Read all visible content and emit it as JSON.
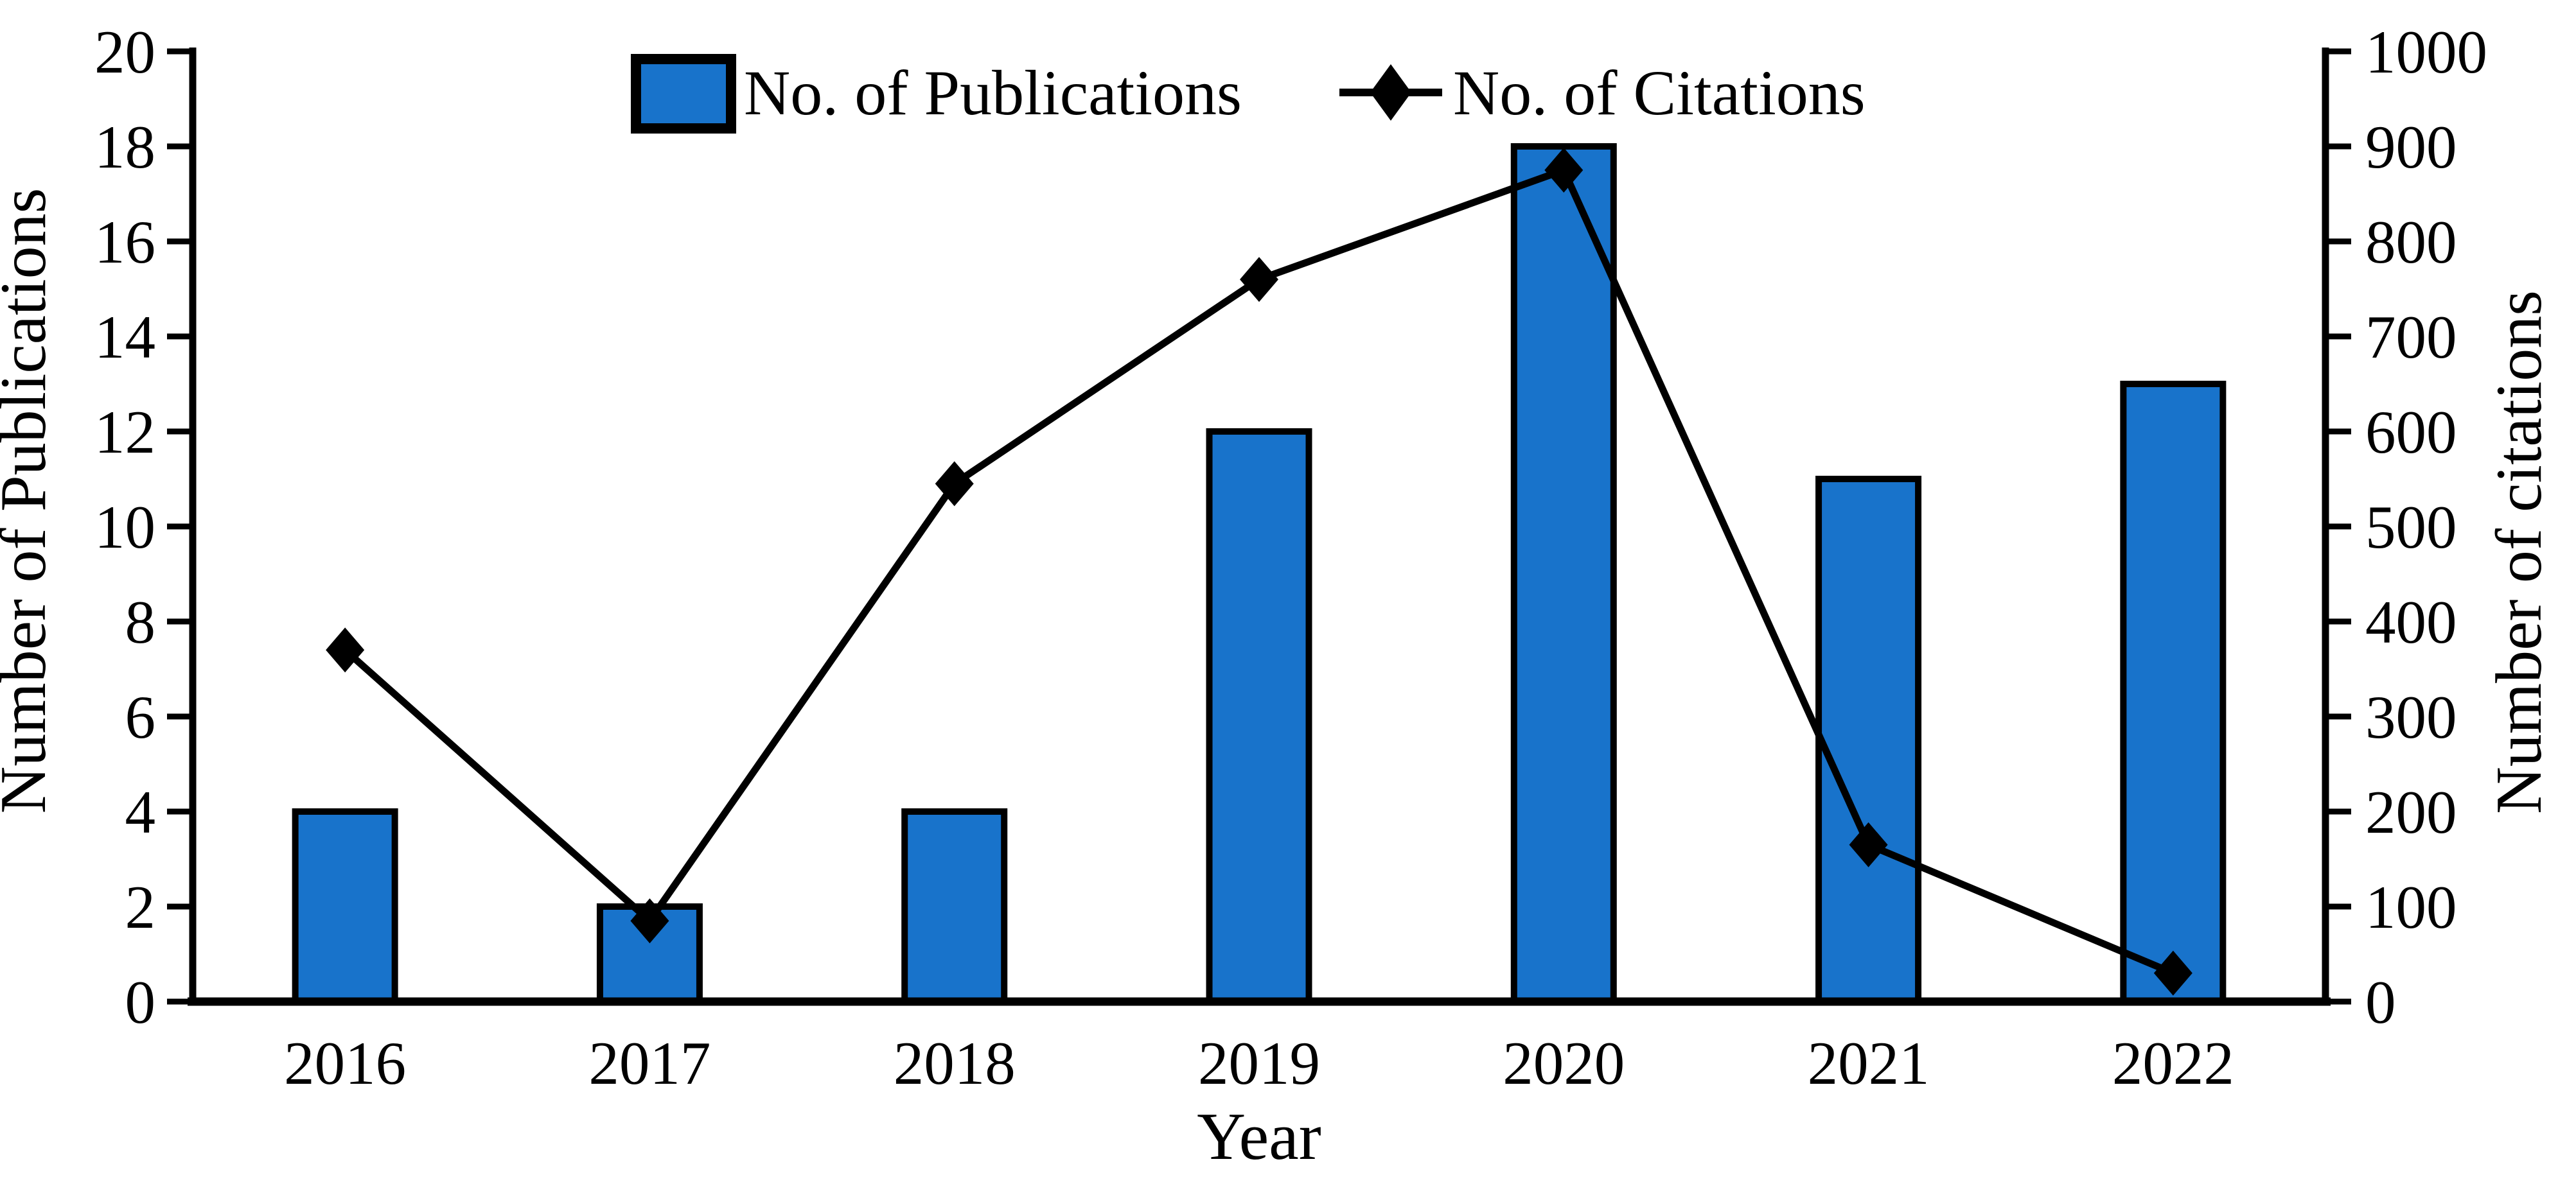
{
  "figure": {
    "background": "#ffffff",
    "text_color": "#000000"
  },
  "chart_data": {
    "type": "combo",
    "categories": [
      "2016",
      "2017",
      "2018",
      "2019",
      "2020",
      "2021",
      "2022"
    ],
    "series": [
      {
        "name": "No. of Publications",
        "type": "bar",
        "axis": "left",
        "values": [
          4,
          2,
          4,
          12,
          18,
          11,
          13
        ],
        "color": "#1873CB",
        "border_color": "#000000"
      },
      {
        "name": "No. of Citations",
        "type": "line",
        "axis": "right",
        "values": [
          370,
          85,
          545,
          760,
          875,
          165,
          30
        ],
        "color": "#000000",
        "marker": "diamond"
      }
    ],
    "left_axis": {
      "label": "Number of Publications",
      "min": 0,
      "max": 20,
      "step": 2
    },
    "right_axis": {
      "label": "Number of citations",
      "min": 0,
      "max": 1000,
      "step": 100
    },
    "xlabel": "Year",
    "legend_position": "top",
    "grid": false
  }
}
